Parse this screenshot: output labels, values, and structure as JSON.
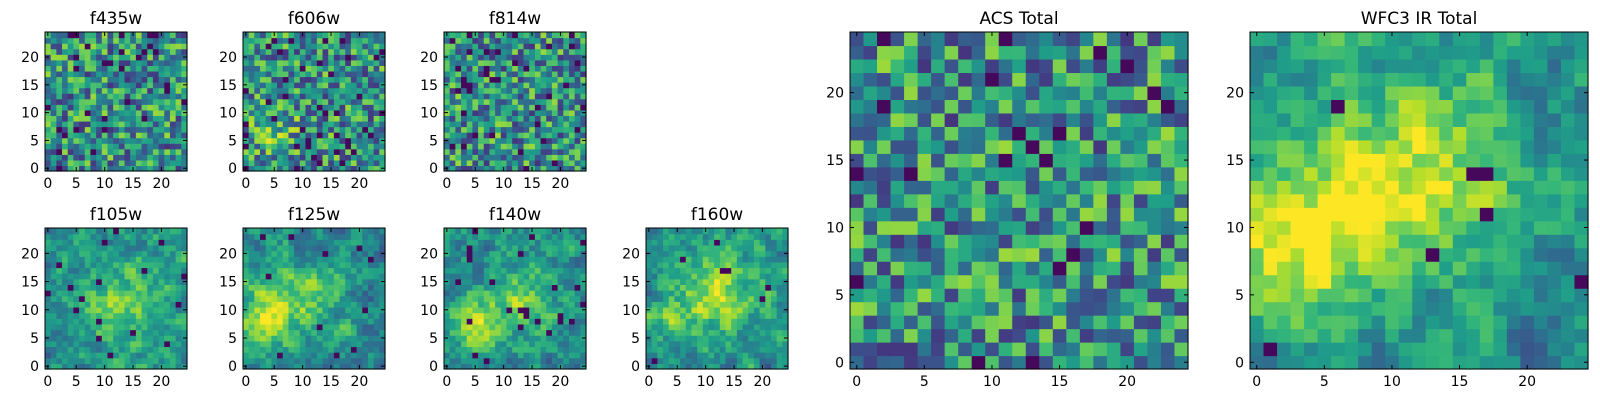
{
  "chart_data": {
    "type": "heatmap",
    "colormap": "viridis",
    "panels": [
      {
        "title": "f435w",
        "seed": 11,
        "smooth": 0,
        "bias": [],
        "dark": 0.05,
        "xticks": [
          0,
          5,
          10,
          15,
          20
        ],
        "yticks": [
          0,
          5,
          10,
          15,
          20
        ],
        "grid": 25
      },
      {
        "title": "f606w",
        "seed": 23,
        "smooth": 0,
        "bias": [
          [
            4,
            8,
            3,
            0.25
          ]
        ],
        "dark": 0.06,
        "xticks": [
          0,
          5,
          10,
          15,
          20
        ],
        "yticks": [
          0,
          5,
          10,
          15,
          20
        ],
        "grid": 25
      },
      {
        "title": "f814w",
        "seed": 37,
        "smooth": 0,
        "bias": [],
        "dark": 0.07,
        "xticks": [
          0,
          5,
          10,
          15,
          20
        ],
        "yticks": [
          0,
          5,
          10,
          15,
          20
        ],
        "grid": 25
      },
      {
        "title": "f105w",
        "seed": 41,
        "smooth": 1,
        "bias": [
          [
            13,
            11,
            5,
            0.3
          ]
        ],
        "dark": 0.02,
        "xticks": [
          0,
          5,
          10,
          15,
          20
        ],
        "yticks": [
          0,
          5,
          10,
          15,
          20
        ],
        "grid": 25
      },
      {
        "title": "f125w",
        "seed": 53,
        "smooth": 1,
        "bias": [
          [
            4,
            9,
            4,
            0.35
          ],
          [
            12,
            13,
            4,
            0.2
          ]
        ],
        "dark": 0.02,
        "xticks": [
          0,
          5,
          10,
          15,
          20
        ],
        "yticks": [
          0,
          5,
          10,
          15,
          20
        ],
        "grid": 25
      },
      {
        "title": "f140w",
        "seed": 67,
        "smooth": 1,
        "bias": [
          [
            5,
            8,
            4,
            0.3
          ],
          [
            14,
            12,
            4,
            0.25
          ]
        ],
        "dark": 0.03,
        "xticks": [
          0,
          5,
          10,
          15,
          20
        ],
        "yticks": [
          0,
          5,
          10,
          15,
          20
        ],
        "grid": 25
      },
      {
        "title": "f160w",
        "seed": 79,
        "smooth": 1,
        "bias": [
          [
            12,
            13,
            5,
            0.4
          ],
          [
            3,
            8,
            3,
            0.2
          ]
        ],
        "dark": 0.02,
        "xticks": [
          0,
          5,
          10,
          15,
          20
        ],
        "yticks": [
          0,
          5,
          10,
          15,
          20
        ],
        "grid": 25
      },
      {
        "title": "ACS Total",
        "seed": 97,
        "smooth": 0,
        "bias": [],
        "dark": 0.04,
        "xticks": [
          0,
          5,
          10,
          15,
          20
        ],
        "yticks": [
          0,
          5,
          10,
          15,
          20
        ],
        "grid": 25
      },
      {
        "title": "WFC3 IR Total",
        "seed": 131,
        "smooth": 1,
        "bias": [
          [
            3,
            9,
            4,
            0.45
          ],
          [
            12,
            14,
            5,
            0.45
          ]
        ],
        "dark": 0.02,
        "xticks": [
          0,
          5,
          10,
          15,
          20
        ],
        "yticks": [
          0,
          5,
          10,
          15,
          20
        ],
        "grid": 25
      }
    ]
  }
}
